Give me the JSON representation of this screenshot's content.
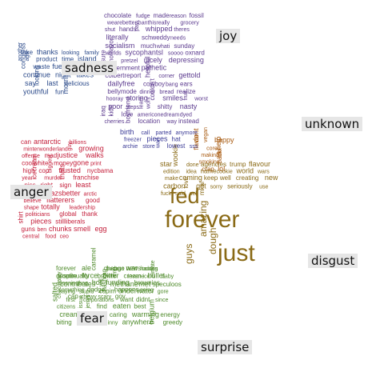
{
  "chart_data": {
    "type": "comparison_wordcloud",
    "categories": [
      {
        "name": "joy",
        "color": "#5b3a8e",
        "words": [
          {
            "t": "chocolate",
            "s": 1
          },
          {
            "t": "fudge",
            "s": 1
          },
          {
            "t": "made",
            "s": 1
          },
          {
            "t": "reason",
            "s": 1
          },
          {
            "t": "fossil",
            "s": 1
          },
          {
            "t": "wearebetterthanthisreally",
            "s": 1
          },
          {
            "t": "grocery",
            "s": 1
          },
          {
            "t": "shut",
            "s": 1
          },
          {
            "t": "hands",
            "s": 1
          },
          {
            "t": "pay",
            "s": 1
          },
          {
            "t": "whipped",
            "s": 1
          },
          {
            "t": "theres",
            "s": 1
          },
          {
            "t": "literally",
            "s": 1
          },
          {
            "t": "schweddy",
            "s": 1
          },
          {
            "t": "needs",
            "s": 1
          },
          {
            "t": "socialism",
            "s": 1
          },
          {
            "t": "much",
            "s": 1
          },
          {
            "t": "whati",
            "s": 1
          },
          {
            "t": "sunday",
            "s": 1
          },
          {
            "t": "worlds",
            "s": 1
          },
          {
            "t": "sycophantsl",
            "s": 1
          },
          {
            "t": "soooo",
            "s": 1
          },
          {
            "t": "oxnard",
            "s": 1
          },
          {
            "t": "sure",
            "s": 1
          },
          {
            "t": "nofflavor",
            "s": 1
          },
          {
            "t": "pretzel",
            "s": 1
          },
          {
            "t": "nicely",
            "s": 1
          },
          {
            "t": "depressing",
            "s": 1
          },
          {
            "t": "government",
            "s": 1
          },
          {
            "t": "pathetic",
            "s": 1
          },
          {
            "t": "colbertreport",
            "s": 1
          },
          {
            "t": "helpful",
            "s": 1
          },
          {
            "t": "corner",
            "s": 1
          },
          {
            "t": "gettold",
            "s": 1
          },
          {
            "t": "dailyfree",
            "s": 1
          },
          {
            "t": "cowboy",
            "s": 1
          },
          {
            "t": "bang",
            "s": 1
          },
          {
            "t": "ears",
            "s": 1
          },
          {
            "t": "bellymode",
            "s": 1
          },
          {
            "t": "dinner",
            "s": 1
          },
          {
            "t": "bread",
            "s": 1
          },
          {
            "t": "realize",
            "s": 1
          },
          {
            "t": "hooray",
            "s": 1
          },
          {
            "t": "storing",
            "s": 1
          },
          {
            "t": "couldn't",
            "s": 1
          },
          {
            "t": "smiles",
            "s": 1
          },
          {
            "t": "fruit",
            "s": 1
          },
          {
            "t": "worst",
            "s": 1
          },
          {
            "t": "poor",
            "s": 1
          },
          {
            "t": "steps",
            "s": 1
          },
          {
            "t": "learn",
            "s": 1
          },
          {
            "t": "wont",
            "s": 1
          },
          {
            "t": "shitty",
            "s": 1
          },
          {
            "t": "nasty",
            "s": 1
          },
          {
            "t": "iraq",
            "s": 1
          },
          {
            "t": "kids",
            "s": 1
          },
          {
            "t": "love",
            "s": 1
          },
          {
            "t": "americonedream",
            "s": 1
          },
          {
            "t": "dyed",
            "s": 1
          },
          {
            "t": "cherries",
            "s": 1
          },
          {
            "t": "boyfriend",
            "s": 1
          },
          {
            "t": "location",
            "s": 1
          },
          {
            "t": "way",
            "s": 1
          },
          {
            "t": "instead",
            "s": 1
          }
        ]
      },
      {
        "name": "sadness",
        "color": "#2b4a8a",
        "words": [
          {
            "t": "take",
            "s": 1
          },
          {
            "t": "thanks",
            "s": 1
          },
          {
            "t": "looking",
            "s": 1
          },
          {
            "t": "family",
            "s": 1
          },
          {
            "t": "another",
            "s": 1
          },
          {
            "t": "agw",
            "s": 1
          },
          {
            "t": "product",
            "s": 1
          },
          {
            "t": "time",
            "s": 1
          },
          {
            "t": "island",
            "s": 1
          },
          {
            "t": "congress",
            "s": 1
          },
          {
            "t": "waste",
            "s": 1
          },
          {
            "t": "fuels",
            "s": 1
          },
          {
            "t": "short",
            "s": 1
          },
          {
            "t": "continue",
            "s": 1
          },
          {
            "t": "night",
            "s": 1
          },
          {
            "t": "takes",
            "s": 1
          },
          {
            "t": "say",
            "s": 1
          },
          {
            "t": "looking",
            "s": 1
          },
          {
            "t": "last",
            "s": 1
          },
          {
            "t": "delicious",
            "s": 1
          },
          {
            "t": "youthful",
            "s": 1
          },
          {
            "t": "fun",
            "s": 1
          },
          {
            "t": "morning",
            "s": 1
          }
        ]
      },
      {
        "name": "anger",
        "color": "#c41e3a",
        "words": [
          {
            "t": "can",
            "s": 1
          },
          {
            "t": "antarctic",
            "s": 1
          },
          {
            "t": "billions",
            "s": 1
          },
          {
            "t": "minterwonderland",
            "s": 1
          },
          {
            "t": "guy",
            "s": 1
          },
          {
            "t": "growing",
            "s": 1
          },
          {
            "t": "offense",
            "s": 1
          },
          {
            "t": "mad",
            "s": 1
          },
          {
            "t": "justice",
            "s": 1
          },
          {
            "t": "walks",
            "s": 1
          },
          {
            "t": "coolwhite",
            "s": 1
          },
          {
            "t": "money",
            "s": 1
          },
          {
            "t": "gone",
            "s": 1
          },
          {
            "t": "print",
            "s": 1
          },
          {
            "t": "high",
            "s": 1
          },
          {
            "t": "cop",
            "s": 1
          },
          {
            "t": "biggest",
            "s": 1
          },
          {
            "t": "trusted",
            "s": 1
          },
          {
            "t": "nycbama",
            "s": 1
          },
          {
            "t": "year",
            "s": 1
          },
          {
            "t": "icecream",
            "s": 1
          },
          {
            "t": "murder",
            "s": 1
          },
          {
            "t": "thats",
            "s": 1
          },
          {
            "t": "franchise",
            "s": 1
          },
          {
            "t": "piss",
            "s": 1
          },
          {
            "t": "right",
            "s": 1
          },
          {
            "t": "sign",
            "s": 1
          },
          {
            "t": "least",
            "s": 1
          },
          {
            "t": "haagendazsbetter",
            "s": 1
          },
          {
            "t": "arctic",
            "s": 1
          },
          {
            "t": "believe",
            "s": 1
          },
          {
            "t": "flatterers",
            "s": 1
          },
          {
            "t": "good",
            "s": 1
          },
          {
            "t": "shape",
            "s": 1
          },
          {
            "t": "totally",
            "s": 1
          },
          {
            "t": "leadership",
            "s": 1
          },
          {
            "t": "politicians",
            "s": 1
          },
          {
            "t": "global",
            "s": 1
          },
          {
            "t": "thank",
            "s": 1
          },
          {
            "t": "shirt",
            "s": 1
          },
          {
            "t": "pieces",
            "s": 1
          },
          {
            "t": "stillliberals",
            "s": 1
          },
          {
            "t": "guns",
            "s": 1
          },
          {
            "t": "ben",
            "s": 1
          },
          {
            "t": "chunks",
            "s": 1
          },
          {
            "t": "smell",
            "s": 1
          },
          {
            "t": "egg",
            "s": 1
          },
          {
            "t": "central",
            "s": 1
          },
          {
            "t": "food",
            "s": 1
          },
          {
            "t": "ceo",
            "s": 1
          }
        ]
      },
      {
        "name": "fear",
        "color": "#4e8a2a",
        "words": [
          {
            "t": "forever",
            "s": 1
          },
          {
            "t": "ale",
            "s": 1
          },
          {
            "t": "caramel",
            "s": 1
          },
          {
            "t": "change",
            "s": 1
          },
          {
            "t": "news",
            "s": 1
          },
          {
            "t": "tactics",
            "s": 1
          },
          {
            "t": "continually",
            "s": 1
          },
          {
            "t": "brown",
            "s": 1
          },
          {
            "t": "amp",
            "s": 1
          },
          {
            "t": "cream",
            "s": 1
          },
          {
            "t": "ice",
            "s": 1
          },
          {
            "t": "climate",
            "s": 1
          },
          {
            "t": "baby",
            "s": 1
          },
          {
            "t": "contributes",
            "s": 1
          },
          {
            "t": "will",
            "s": 1
          },
          {
            "t": "methane",
            "s": 1
          },
          {
            "t": "met",
            "s": 1
          },
          {
            "t": "speculoos",
            "s": 1
          },
          {
            "t": "saying",
            "s": 1
          },
          {
            "t": "stupid",
            "s": 1
          },
          {
            "t": "cupim",
            "s": 1
          },
          {
            "t": "underwater",
            "s": 1
          },
          {
            "t": "gore",
            "s": 1
          },
          {
            "t": "salted",
            "s": 1
          },
          {
            "t": "first",
            "s": 1
          },
          {
            "t": "corporations",
            "s": 1
          },
          {
            "t": "want",
            "s": 1
          },
          {
            "t": "didnt",
            "s": 1
          },
          {
            "t": "since",
            "s": 1
          },
          {
            "t": "citizens",
            "s": 1
          },
          {
            "t": "issue",
            "s": 1
          },
          {
            "t": "jerrys",
            "s": 1
          },
          {
            "t": "find",
            "s": 1
          },
          {
            "t": "eaten",
            "s": 1
          },
          {
            "t": "best",
            "s": 1
          },
          {
            "t": "creamcouldn't",
            "s": 1
          },
          {
            "t": "caring",
            "s": 1
          },
          {
            "t": "warming",
            "s": 1
          },
          {
            "t": "energy",
            "s": 1
          },
          {
            "t": "biting",
            "s": 1
          },
          {
            "t": "terrible",
            "s": 1
          },
          {
            "t": "inny",
            "s": 1
          },
          {
            "t": "anywhere",
            "s": 1
          },
          {
            "t": "belgium",
            "s": 1
          },
          {
            "t": "greedy",
            "s": 1
          },
          {
            "t": "badass",
            "s": 1
          },
          {
            "t": "war",
            "s": 1
          },
          {
            "t": "fucking",
            "s": 1
          },
          {
            "t": "despite",
            "s": 1
          },
          {
            "t": "force",
            "s": 1
          },
          {
            "t": "bitter",
            "s": 1
          },
          {
            "t": "insane",
            "s": 1
          },
          {
            "t": "bullet",
            "s": 1
          },
          {
            "t": "cleaningbag",
            "s": 1
          },
          {
            "t": "hot",
            "s": 1
          },
          {
            "t": "funding",
            "s": 1
          },
          {
            "t": "brownies",
            "s": 1
          },
          {
            "t": "something",
            "s": 1
          },
          {
            "t": "dodge",
            "s": 1
          },
          {
            "t": "hashtag",
            "s": 1
          },
          {
            "t": "happens",
            "s": 1
          },
          {
            "t": "going",
            "s": 1
          },
          {
            "t": "chocolatey",
            "s": 1
          },
          {
            "t": "cap",
            "s": 1
          },
          {
            "t": "chewy",
            "s": 1
          },
          {
            "t": "scary",
            "s": 1
          },
          {
            "t": "gov",
            "s": 1
          }
        ]
      },
      {
        "name": "unknown",
        "color": "#a85a10",
        "words": [
          {
            "t": "dont",
            "s": 1
          },
          {
            "t": "vegan",
            "s": 1
          },
          {
            "t": "happy",
            "s": 1
          },
          {
            "t": "flavor",
            "s": 1
          },
          {
            "t": "core",
            "s": 1
          },
          {
            "t": "help",
            "s": 1
          },
          {
            "t": "making",
            "s": 1
          },
          {
            "t": "like",
            "s": 1
          },
          {
            "t": "smoking",
            "s": 1
          },
          {
            "t": "back",
            "s": 1
          },
          {
            "t": "crap",
            "s": 1
          },
          {
            "t": "lol",
            "s": 1
          }
        ]
      },
      {
        "name": "disgust",
        "color": "#8a6a16",
        "words": [
          {
            "t": "fed",
            "s": 5
          },
          {
            "t": "forever",
            "s": 5
          },
          {
            "t": "just",
            "s": 5
          },
          {
            "t": "amazing",
            "s": 2
          },
          {
            "t": "dough",
            "s": 2
          },
          {
            "t": "guys",
            "s": 2
          },
          {
            "t": "star",
            "s": 1
          },
          {
            "t": "wookie",
            "s": 1
          },
          {
            "t": "done",
            "s": 1
          },
          {
            "t": "agencies",
            "s": 1
          },
          {
            "t": "trump",
            "s": 1
          },
          {
            "t": "flavour",
            "s": 1
          },
          {
            "t": "edition",
            "s": 1
          },
          {
            "t": "idea",
            "s": 1
          },
          {
            "t": "name",
            "s": 1
          },
          {
            "t": "cookie",
            "s": 1
          },
          {
            "t": "world",
            "s": 1
          },
          {
            "t": "wars",
            "s": 1
          },
          {
            "t": "make",
            "s": 1
          },
          {
            "t": "coming",
            "s": 1
          },
          {
            "t": "keep",
            "s": 1
          },
          {
            "t": "well",
            "s": 1
          },
          {
            "t": "creating",
            "s": 1
          },
          {
            "t": "new",
            "s": 1
          },
          {
            "t": "carbon",
            "s": 1
          },
          {
            "t": "love",
            "s": 1
          },
          {
            "t": "get",
            "s": 1
          },
          {
            "t": "sorry",
            "s": 1
          },
          {
            "t": "seriously",
            "s": 1
          },
          {
            "t": "use",
            "s": 1
          },
          {
            "t": "fuck",
            "s": 1
          },
          {
            "t": "said",
            "s": 1
          },
          {
            "t": "sell",
            "s": 1
          },
          {
            "t": "mkal",
            "s": 1
          }
        ]
      },
      {
        "name": "surprise",
        "color": "#3a3a96",
        "words": [
          {
            "t": "birth",
            "s": 1
          },
          {
            "t": "call",
            "s": 1
          },
          {
            "t": "parted",
            "s": 1
          },
          {
            "t": "anymore",
            "s": 1
          },
          {
            "t": "freezer",
            "s": 1
          },
          {
            "t": "pieces",
            "s": 1
          },
          {
            "t": "hat",
            "s": 1
          },
          {
            "t": "archie",
            "s": 1
          },
          {
            "t": "store",
            "s": 1
          },
          {
            "t": "wait",
            "s": 1
          },
          {
            "t": "lowest",
            "s": 1
          },
          {
            "t": "sss",
            "s": 1
          }
        ]
      }
    ]
  }
}
